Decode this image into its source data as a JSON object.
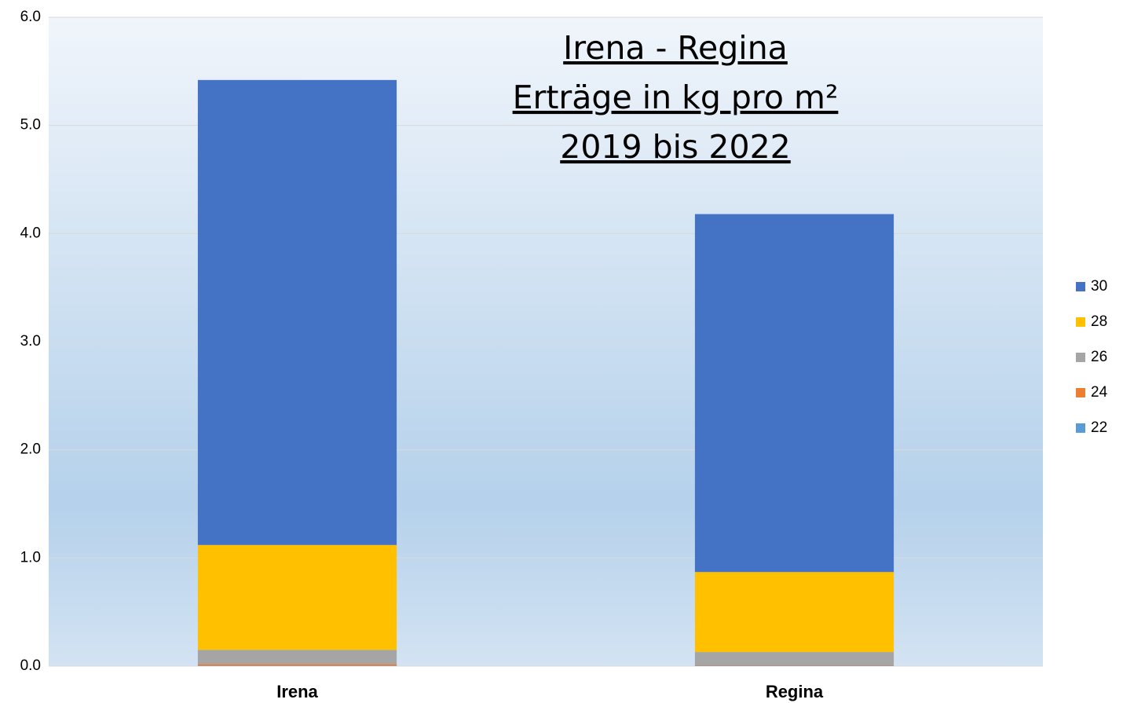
{
  "chart_data": {
    "type": "stacked_bar",
    "title": [
      "Irena - Regina",
      "Erträge in kg pro m²",
      "2019 bis 2022"
    ],
    "categories": [
      "Irena",
      "Regina"
    ],
    "series": [
      {
        "name": "22",
        "color": "#5b9bd5",
        "values": [
          0.005,
          0.005
        ]
      },
      {
        "name": "24",
        "color": "#ed7d31",
        "values": [
          0.015,
          0.005
        ]
      },
      {
        "name": "26",
        "color": "#a5a5a5",
        "values": [
          0.13,
          0.12
        ]
      },
      {
        "name": "28",
        "color": "#ffc000",
        "values": [
          0.97,
          0.74
        ]
      },
      {
        "name": "30",
        "color": "#4472c4",
        "values": [
          4.3,
          3.31
        ]
      }
    ],
    "ylim": [
      0,
      6
    ],
    "yticks": [
      {
        "value": 0,
        "label": "0.0"
      },
      {
        "value": 1,
        "label": "1.0"
      },
      {
        "value": 2,
        "label": "2.0"
      },
      {
        "value": 3,
        "label": "3.0"
      },
      {
        "value": 4,
        "label": "4.0"
      },
      {
        "value": 5,
        "label": "5.0"
      },
      {
        "value": 6,
        "label": "6.0"
      }
    ],
    "grid": true,
    "legend": "right"
  }
}
